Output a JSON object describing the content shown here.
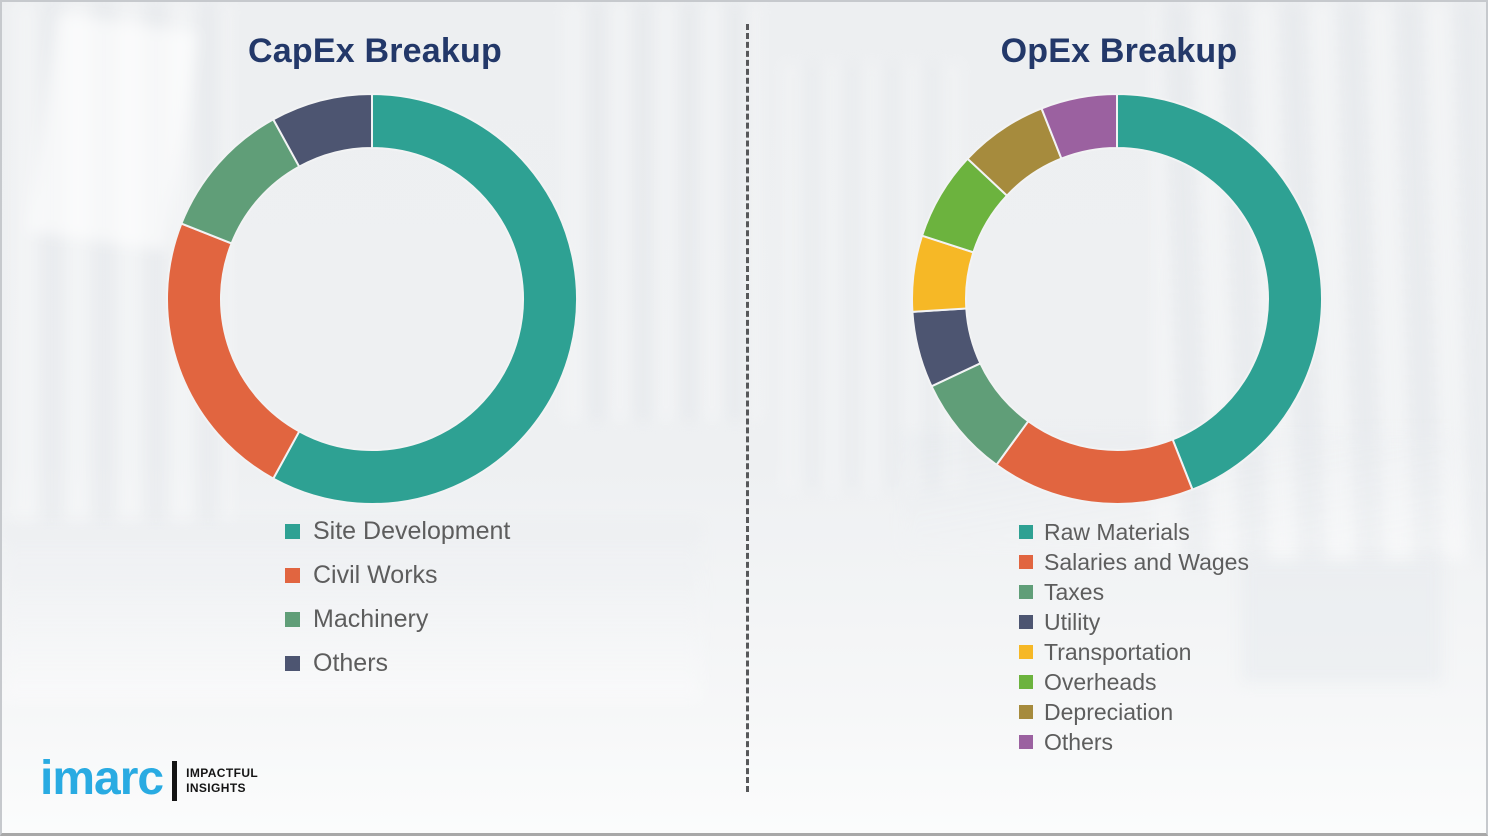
{
  "page": {
    "background_color": "#EDEFF1",
    "title_color": "#233869",
    "legend_text_color": "#5D5D5D",
    "divider": "vertical dashed line between panels"
  },
  "chart_data": [
    {
      "type": "pie",
      "subtype": "donut",
      "title": "CapEx Breakup",
      "labels": [
        "Site Development",
        "Civil Works",
        "Machinery",
        "Others"
      ],
      "values": [
        58,
        23,
        11,
        8
      ],
      "values_are_percent_estimates": true,
      "colors": [
        "#2EA193",
        "#E16540",
        "#609E78",
        "#4D5571"
      ],
      "start_angle_deg": 0,
      "direction": "clockwise",
      "legend_position": "below-chart-left",
      "data_labels_shown": false
    },
    {
      "type": "pie",
      "subtype": "donut",
      "title": "OpEx Breakup",
      "labels": [
        "Raw Materials",
        "Salaries and Wages",
        "Taxes",
        "Utility",
        "Transportation",
        "Overheads",
        "Depreciation",
        "Others"
      ],
      "values": [
        44,
        16,
        8,
        6,
        6,
        7,
        7,
        6
      ],
      "values_are_percent_estimates": true,
      "colors": [
        "#2EA193",
        "#E16540",
        "#609E78",
        "#4D5571",
        "#F6B826",
        "#6CB33E",
        "#A68B3D",
        "#9B61A0"
      ],
      "start_angle_deg": 0,
      "direction": "clockwise",
      "legend_position": "below-chart-left",
      "data_labels_shown": false
    }
  ],
  "logo": {
    "brand": "imarc",
    "brand_color": "#29ABE2",
    "tagline_line1": "IMPACTFUL",
    "tagline_line2": "INSIGHTS"
  }
}
